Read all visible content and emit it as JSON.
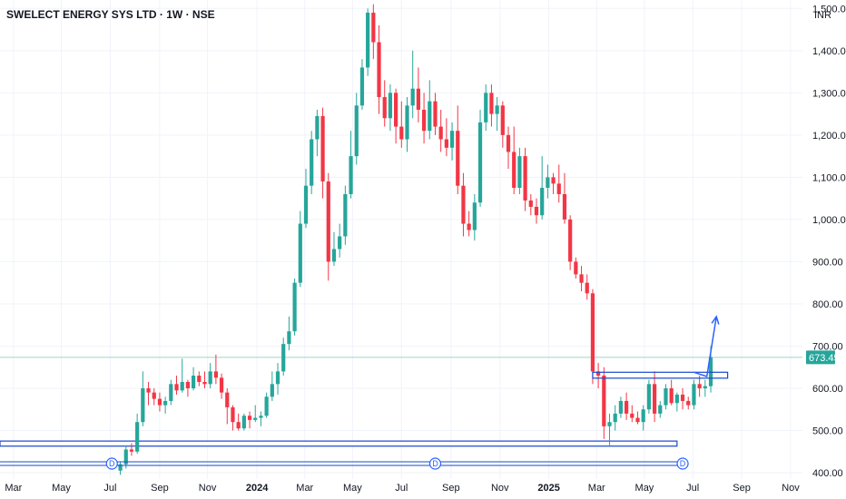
{
  "header": {
    "title": "SWELECT ENERGY SYS LTD · 1W · NSE",
    "currency": "INR"
  },
  "colors": {
    "up": "#26a69a",
    "down": "#f23645",
    "grid": "#f0f3fa",
    "axis_text": "#131722",
    "drawing": "#1848cc",
    "last_price_line": "#9fd5c9"
  },
  "chart_data": {
    "type": "candlestick",
    "title": "SWELECT ENERGY SYS LTD · 1W · NSE",
    "interval": "1W",
    "exchange": "NSE",
    "currency": "INR",
    "last_price": "673.45",
    "y_ticks": [
      "1,500.00",
      "1,400.00",
      "1,300.00",
      "1,200.00",
      "1,100.00",
      "1,000.00",
      "900.00",
      "800.00",
      "700.00",
      "600.00",
      "500.00",
      "400.00"
    ],
    "y_tick_values": [
      1500,
      1400,
      1300,
      1200,
      1100,
      1000,
      900,
      800,
      700,
      600,
      500,
      400
    ],
    "ylim": [
      385,
      1520
    ],
    "x_ticks": [
      {
        "label": "Mar",
        "week": -19
      },
      {
        "label": "May",
        "week": -10.5
      },
      {
        "label": "Jul",
        "week": -1.8
      },
      {
        "label": "Sep",
        "week": 7
      },
      {
        "label": "Nov",
        "week": 15.5
      },
      {
        "label": "2024",
        "week": 24.3,
        "bold": true
      },
      {
        "label": "Mar",
        "week": 32.8
      },
      {
        "label": "May",
        "week": 41.3
      },
      {
        "label": "Jul",
        "week": 50
      },
      {
        "label": "Sep",
        "week": 58.8
      },
      {
        "label": "Nov",
        "week": 67.5
      },
      {
        "label": "2025",
        "week": 76.2,
        "bold": true
      },
      {
        "label": "Mar",
        "week": 84.7
      },
      {
        "label": "May",
        "week": 93.2
      },
      {
        "label": "Jul",
        "week": 101.8
      },
      {
        "label": "Sep",
        "week": 110.5
      },
      {
        "label": "Nov",
        "week": 119.2
      }
    ],
    "xlim": [
      -21.4,
      121.3
    ],
    "candles": [
      [
        405,
        425,
        395,
        420
      ],
      [
        420,
        465,
        410,
        455
      ],
      [
        455,
        470,
        440,
        450
      ],
      [
        450,
        540,
        445,
        520
      ],
      [
        520,
        640,
        510,
        600
      ],
      [
        600,
        615,
        560,
        590
      ],
      [
        590,
        600,
        560,
        575
      ],
      [
        575,
        590,
        545,
        560
      ],
      [
        560,
        580,
        540,
        570
      ],
      [
        570,
        620,
        560,
        610
      ],
      [
        610,
        630,
        585,
        595
      ],
      [
        595,
        670,
        590,
        615
      ],
      [
        615,
        620,
        580,
        600
      ],
      [
        600,
        650,
        595,
        630
      ],
      [
        630,
        640,
        605,
        615
      ],
      [
        615,
        640,
        600,
        610
      ],
      [
        610,
        660,
        600,
        640
      ],
      [
        640,
        680,
        610,
        625
      ],
      [
        625,
        635,
        575,
        590
      ],
      [
        590,
        600,
        515,
        555
      ],
      [
        555,
        560,
        500,
        520
      ],
      [
        520,
        540,
        500,
        505
      ],
      [
        505,
        540,
        500,
        535
      ],
      [
        535,
        545,
        505,
        525
      ],
      [
        525,
        560,
        520,
        530
      ],
      [
        530,
        545,
        510,
        535
      ],
      [
        535,
        590,
        530,
        580
      ],
      [
        580,
        640,
        570,
        610
      ],
      [
        610,
        660,
        585,
        640
      ],
      [
        640,
        720,
        630,
        705
      ],
      [
        705,
        770,
        690,
        735
      ],
      [
        735,
        860,
        725,
        850
      ],
      [
        850,
        1020,
        840,
        990
      ],
      [
        990,
        1120,
        980,
        1080
      ],
      [
        1080,
        1210,
        1060,
        1190
      ],
      [
        1190,
        1260,
        1150,
        1245
      ],
      [
        1245,
        1265,
        1050,
        1090
      ],
      [
        1090,
        1110,
        855,
        900
      ],
      [
        900,
        970,
        890,
        930
      ],
      [
        930,
        990,
        910,
        960
      ],
      [
        960,
        1080,
        940,
        1060
      ],
      [
        1060,
        1210,
        1050,
        1150
      ],
      [
        1150,
        1300,
        1130,
        1270
      ],
      [
        1270,
        1380,
        1260,
        1360
      ],
      [
        1360,
        1500,
        1340,
        1490
      ],
      [
        1490,
        1510,
        1380,
        1420
      ],
      [
        1420,
        1460,
        1250,
        1290
      ],
      [
        1290,
        1330,
        1220,
        1240
      ],
      [
        1240,
        1320,
        1210,
        1300
      ],
      [
        1300,
        1310,
        1180,
        1220
      ],
      [
        1220,
        1280,
        1170,
        1190
      ],
      [
        1190,
        1290,
        1160,
        1270
      ],
      [
        1270,
        1400,
        1240,
        1310
      ],
      [
        1310,
        1360,
        1230,
        1260
      ],
      [
        1260,
        1300,
        1180,
        1210
      ],
      [
        1210,
        1330,
        1190,
        1280
      ],
      [
        1280,
        1300,
        1200,
        1220
      ],
      [
        1220,
        1260,
        1160,
        1190
      ],
      [
        1190,
        1240,
        1150,
        1170
      ],
      [
        1170,
        1230,
        1140,
        1210
      ],
      [
        1210,
        1270,
        1060,
        1080
      ],
      [
        1080,
        1110,
        960,
        990
      ],
      [
        990,
        1020,
        960,
        975
      ],
      [
        975,
        1060,
        950,
        1040
      ],
      [
        1040,
        1260,
        1030,
        1230
      ],
      [
        1230,
        1320,
        1210,
        1300
      ],
      [
        1300,
        1320,
        1220,
        1250
      ],
      [
        1250,
        1290,
        1210,
        1270
      ],
      [
        1270,
        1280,
        1170,
        1200
      ],
      [
        1200,
        1220,
        1120,
        1160
      ],
      [
        1160,
        1220,
        1060,
        1075
      ],
      [
        1075,
        1170,
        1060,
        1150
      ],
      [
        1150,
        1170,
        1020,
        1045
      ],
      [
        1045,
        1060,
        1010,
        1030
      ],
      [
        1030,
        1050,
        990,
        1010
      ],
      [
        1010,
        1150,
        1000,
        1075
      ],
      [
        1075,
        1130,
        1050,
        1100
      ],
      [
        1100,
        1110,
        1060,
        1085
      ],
      [
        1085,
        1130,
        1040,
        1060
      ],
      [
        1060,
        1110,
        990,
        1000
      ],
      [
        1000,
        1010,
        880,
        900
      ],
      [
        900,
        910,
        860,
        870
      ],
      [
        870,
        890,
        830,
        850
      ],
      [
        850,
        870,
        810,
        825
      ],
      [
        825,
        835,
        610,
        640
      ],
      [
        640,
        660,
        600,
        630
      ],
      [
        630,
        650,
        480,
        510
      ],
      [
        510,
        540,
        465,
        520
      ],
      [
        520,
        560,
        500,
        540
      ],
      [
        540,
        580,
        530,
        570
      ],
      [
        570,
        590,
        525,
        540
      ],
      [
        540,
        560,
        520,
        530
      ],
      [
        530,
        545,
        515,
        520
      ],
      [
        520,
        560,
        500,
        550
      ],
      [
        550,
        620,
        540,
        610
      ],
      [
        610,
        640,
        520,
        540
      ],
      [
        540,
        570,
        530,
        560
      ],
      [
        560,
        610,
        550,
        600
      ],
      [
        600,
        620,
        560,
        565
      ],
      [
        565,
        590,
        545,
        585
      ],
      [
        585,
        600,
        550,
        570
      ],
      [
        570,
        580,
        550,
        560
      ],
      [
        560,
        620,
        550,
        610
      ],
      [
        610,
        630,
        580,
        600
      ],
      [
        600,
        620,
        580,
        605
      ],
      [
        605,
        700,
        590,
        673.45
      ]
    ],
    "annotations": {
      "support_band": {
        "low": 463,
        "high": 475,
        "week_start": -21.4,
        "week_end": 99
      },
      "breakout_box": {
        "low": 624,
        "high": 638,
        "week_start": 84,
        "week_end": 108
      },
      "projection_arrow": [
        [
          102,
          638
        ],
        [
          104.3,
          628
        ],
        [
          106,
          770
        ]
      ],
      "dividend_markers": [
        -1.5,
        56,
        100
      ],
      "dividend_label": "D"
    }
  }
}
